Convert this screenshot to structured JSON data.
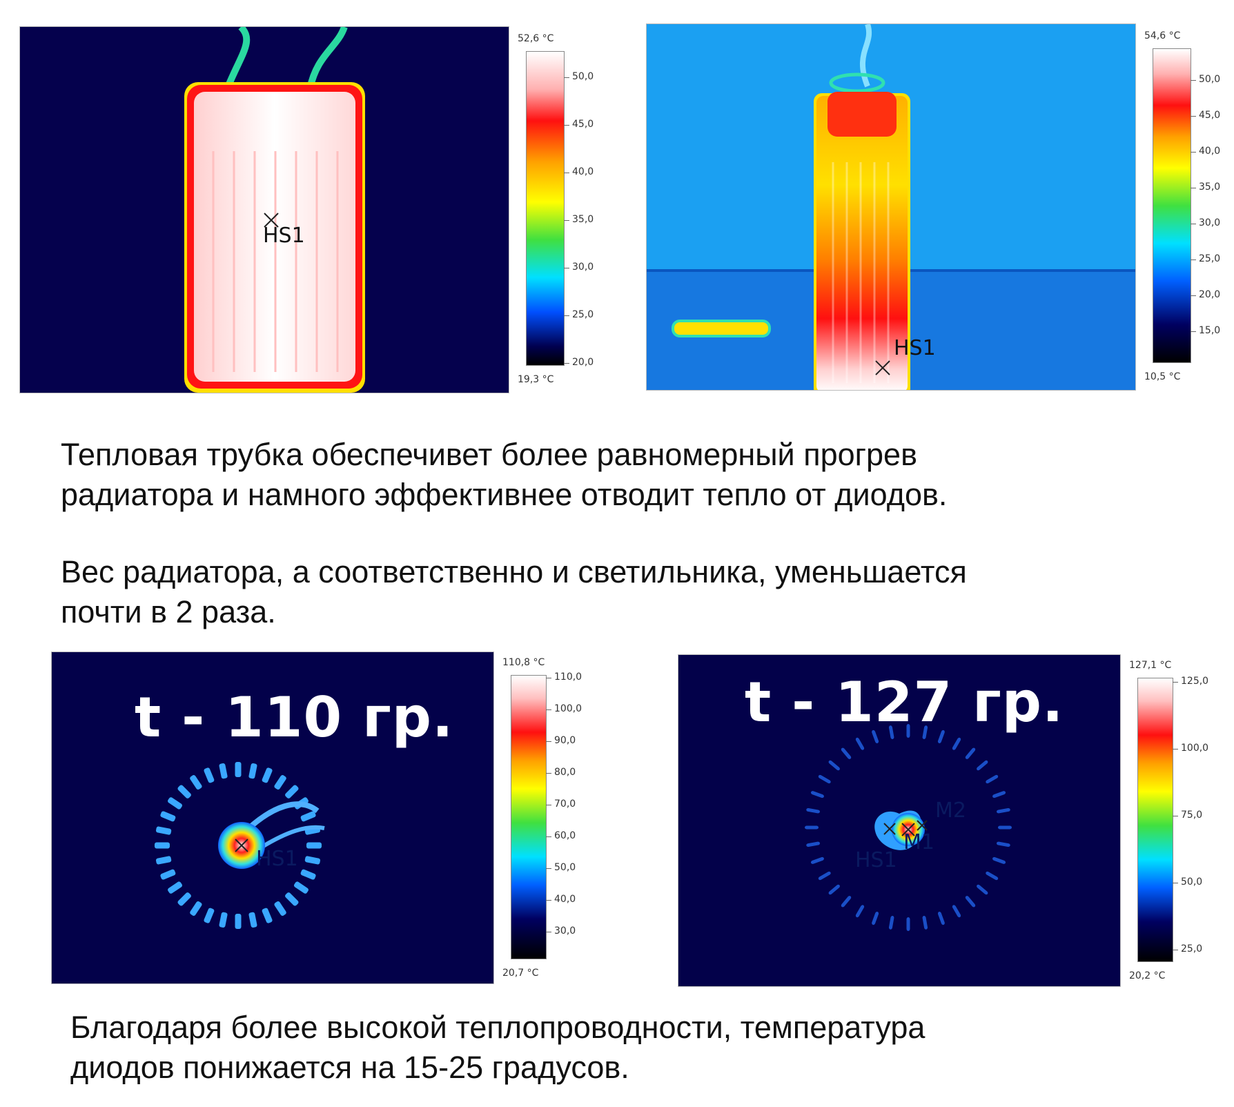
{
  "top_left": {
    "max": "52,6 °C",
    "min": "19,3 °C",
    "ticks": [
      "50,0",
      "45,0",
      "40,0",
      "35,0",
      "30,0",
      "25,0",
      "20,0"
    ],
    "marker": "HS1"
  },
  "top_right": {
    "max": "54,6 °C",
    "min": "10,5 °C",
    "ticks": [
      "50,0",
      "45,0",
      "40,0",
      "35,0",
      "30,0",
      "25,0",
      "20,0",
      "15,0"
    ],
    "marker": "HS1"
  },
  "bottom_left": {
    "max": "110,8 °C",
    "min": "20,7 °C",
    "ticks": [
      "110,0",
      "100,0",
      "90,0",
      "80,0",
      "70,0",
      "60,0",
      "50,0",
      "40,0",
      "30,0"
    ],
    "label": "t - 110 гр.",
    "marker": "HS1"
  },
  "bottom_right": {
    "max": "127,1 °C",
    "min": "20,2 °C",
    "ticks": [
      "125,0",
      "100,0",
      "75,0",
      "50,0",
      "25,0"
    ],
    "label": "t - 127 гр.",
    "markers": [
      "M2",
      "M1",
      "HS1"
    ]
  },
  "captions": {
    "p1_line1": "Тепловая трубка обеспечивет более равномерный прогрев",
    "p1_line2": "радиатора и намного эффективнее отводит тепло от диодов.",
    "p2_line1": "Вес радиатора, а соответственно и светильника, уменьшается",
    "p2_line2": "почти в 2 раза.",
    "p3_line1": "Благодаря более высокой теплопроводности, температура",
    "p3_line2": "диодов понижается на 15-25 градусов."
  },
  "colors": {
    "cold_bg": "#04004a",
    "blue_bg": "#1a9cf0",
    "hot": "#ffffff",
    "red": "#ff1010"
  }
}
